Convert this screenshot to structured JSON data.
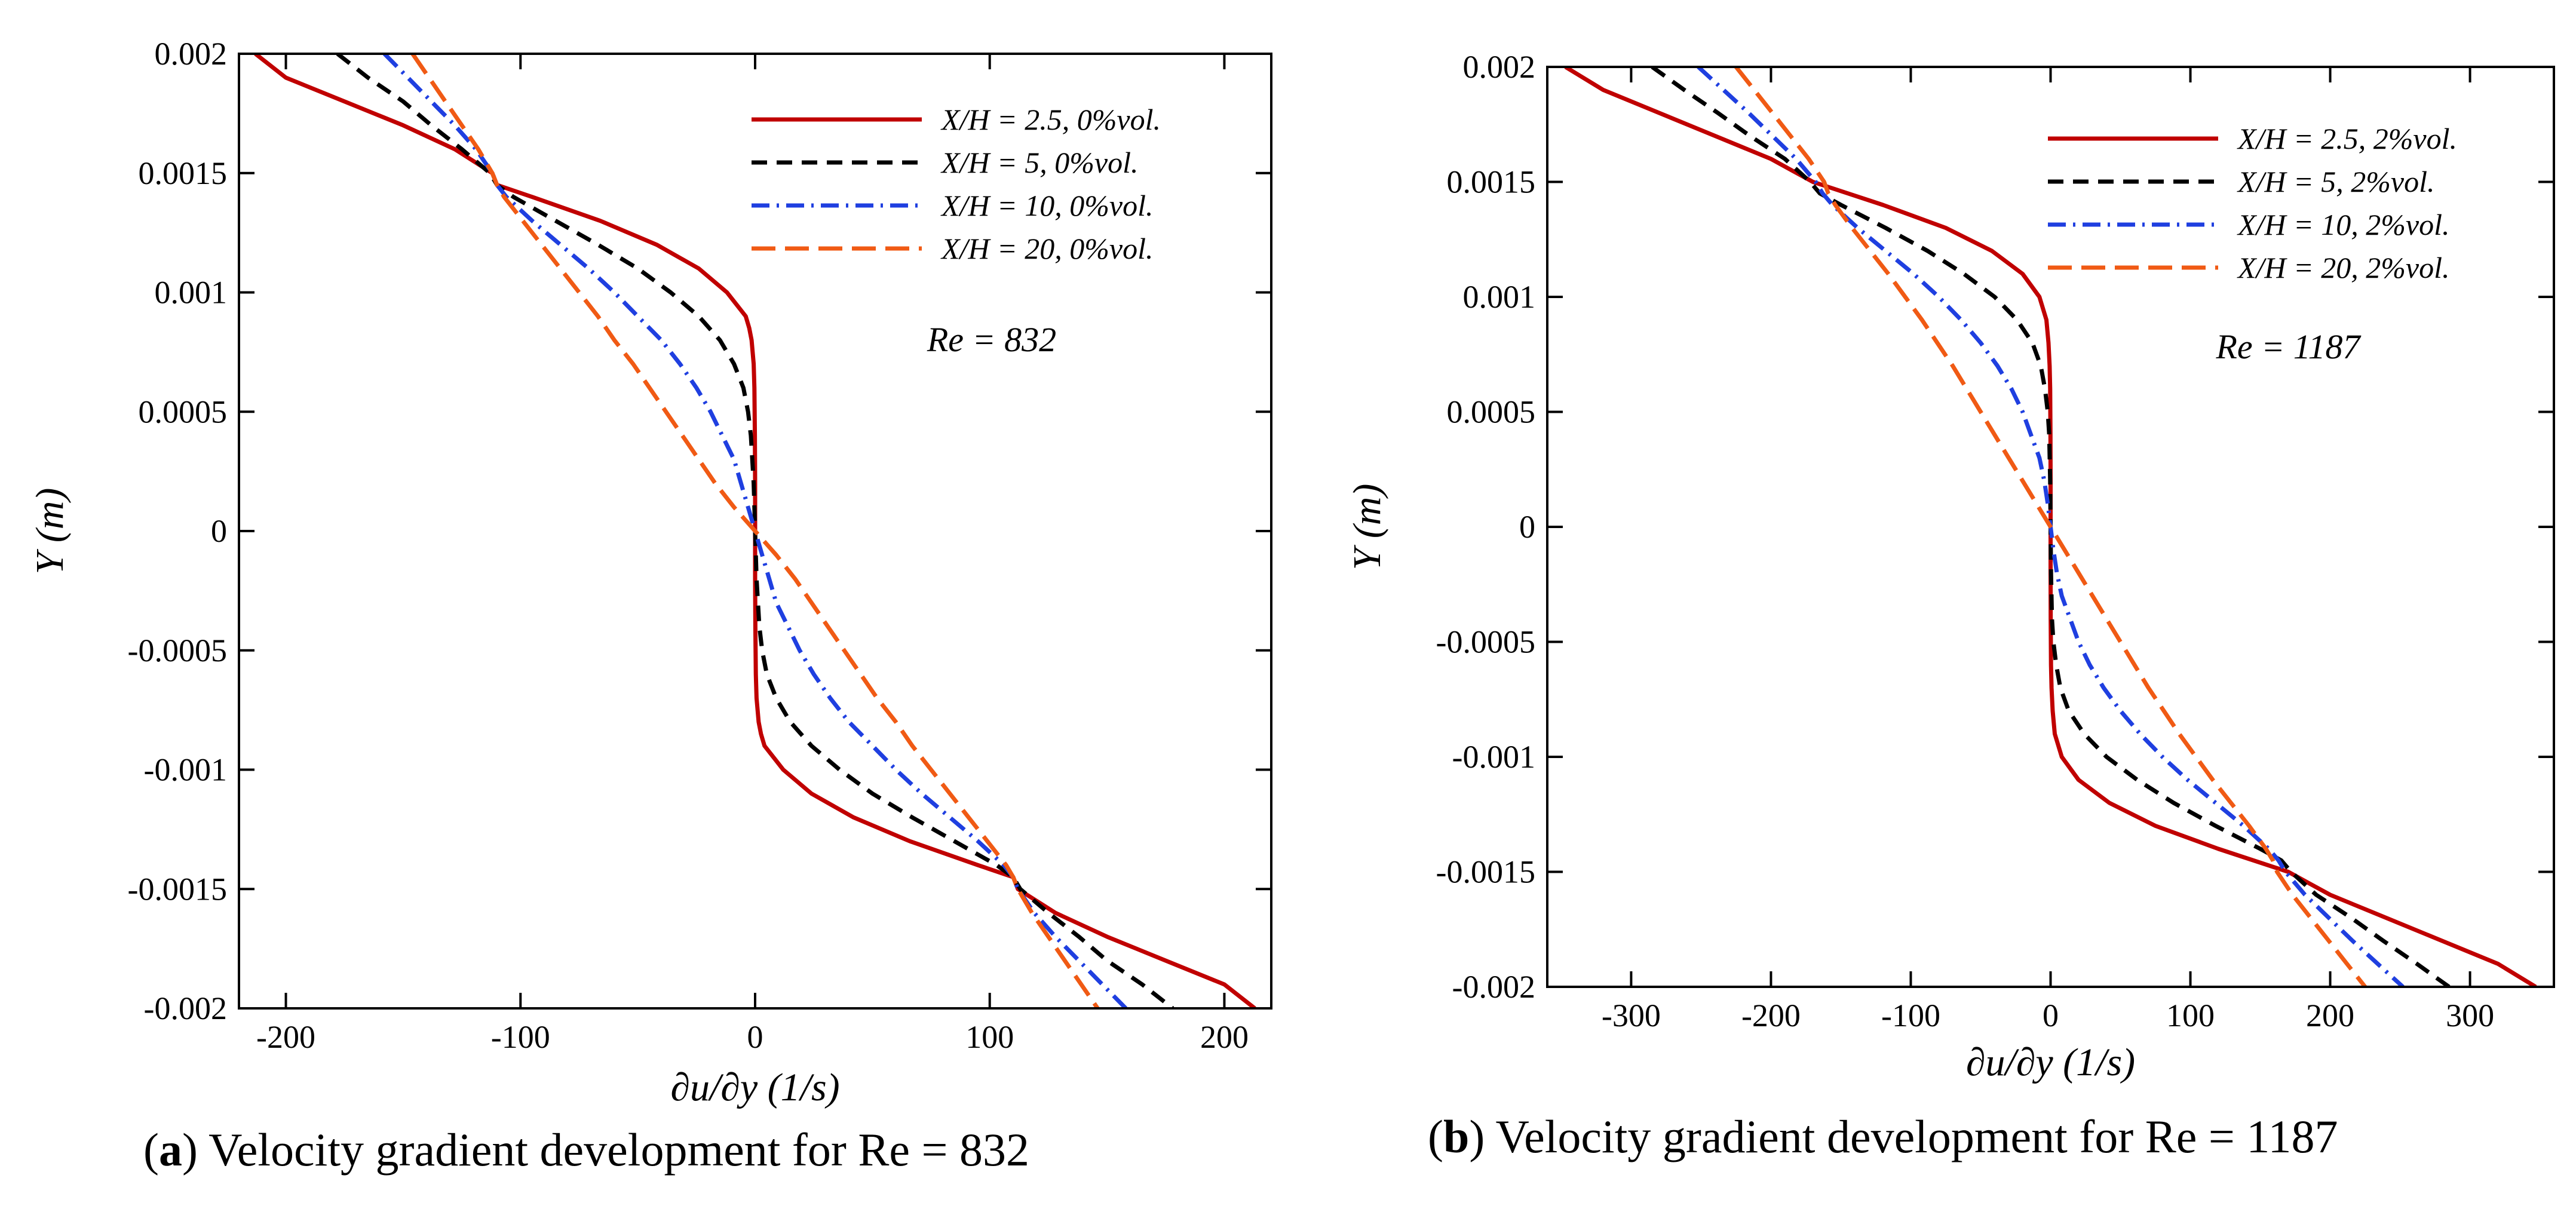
{
  "chart_data": [
    {
      "type": "line",
      "panel_label": "a",
      "caption": "Velocity gradient development for Re = 832",
      "xlabel": "∂u/∂y (1/s)",
      "ylabel": "Y (m)",
      "xlim": [
        -220,
        220
      ],
      "ylim": [
        -0.002,
        0.002
      ],
      "xticks": [
        -200,
        -100,
        0,
        100,
        200
      ],
      "xtick_labels": [
        "-200",
        "-100",
        "0",
        "100",
        "200"
      ],
      "yticks": [
        -0.002,
        -0.0015,
        -0.001,
        -0.0005,
        0,
        0.0005,
        0.001,
        0.0015,
        0.002
      ],
      "ytick_labels": [
        "-0.002",
        "-0.0015",
        "-0.001",
        "-0.0005",
        "0",
        "0.0005",
        "0.001",
        "0.0015",
        "0.002"
      ],
      "annotation": "Re = 832",
      "series": [
        {
          "name": "X/H = 2.5, 0%vol.",
          "color": "#c00000",
          "style": "solid",
          "y": [
            0.002,
            0.0019,
            0.0018,
            0.0017,
            0.0016,
            0.0015,
            0.00145,
            0.0014,
            0.0013,
            0.0012,
            0.0011,
            0.001,
            0.0009,
            0.00085,
            0.0008,
            0.0007,
            0.0006,
            0.0004,
            0.0002,
            0,
            -0.0002,
            -0.0004,
            -0.0006,
            -0.0007,
            -0.0008,
            -0.00085,
            -0.0009,
            -0.001,
            -0.0011,
            -0.0012,
            -0.0013,
            -0.0014,
            -0.00145,
            -0.0015,
            -0.0016,
            -0.0017,
            -0.0018,
            -0.0019,
            -0.002
          ],
          "x": [
            -213,
            -200,
            -175,
            -150,
            -128,
            -112,
            -110,
            -95,
            -66,
            -42,
            -24,
            -12,
            -4,
            -2.5,
            -1.5,
            -0.6,
            -0.3,
            -0.1,
            0,
            0,
            0,
            0.1,
            0.3,
            0.6,
            1.5,
            2.5,
            4,
            12,
            24,
            42,
            66,
            95,
            110,
            112,
            128,
            150,
            175,
            200,
            213
          ]
        },
        {
          "name": "X/H = 5, 0%vol.",
          "color": "#000000",
          "style": "dash",
          "y": [
            0.002,
            0.0019,
            0.0018,
            0.0017,
            0.0016,
            0.0015,
            0.00145,
            0.0014,
            0.0013,
            0.0012,
            0.0011,
            0.001,
            0.0009,
            0.0008,
            0.0007,
            0.0006,
            0.0005,
            0.0004,
            0.0002,
            0,
            -0.0002,
            -0.0004,
            -0.0005,
            -0.0006,
            -0.0007,
            -0.0008,
            -0.0009,
            -0.001,
            -0.0011,
            -0.0012,
            -0.0013,
            -0.0014,
            -0.00145,
            -0.0015,
            -0.0016,
            -0.0017,
            -0.0018,
            -0.0019,
            -0.002
          ],
          "x": [
            -178,
            -165,
            -150,
            -138,
            -125,
            -113,
            -110,
            -103,
            -85,
            -67,
            -50,
            -36,
            -24,
            -15,
            -9,
            -5,
            -3,
            -1.8,
            -0.6,
            0,
            0.6,
            1.8,
            3,
            5,
            9,
            15,
            24,
            36,
            50,
            67,
            85,
            103,
            110,
            113,
            125,
            138,
            150,
            165,
            178
          ]
        },
        {
          "name": "X/H = 10, 0%vol.",
          "color": "#1f3fe0",
          "style": "dashdot",
          "y": [
            0.002,
            0.0019,
            0.0018,
            0.0017,
            0.0016,
            0.0015,
            0.00145,
            0.0014,
            0.0013,
            0.0012,
            0.0011,
            0.001,
            0.0009,
            0.0008,
            0.0007,
            0.0006,
            0.0005,
            0.0004,
            0.0003,
            0.0002,
            0.0001,
            0,
            -0.0001,
            -0.0002,
            -0.0003,
            -0.0004,
            -0.0005,
            -0.0006,
            -0.0007,
            -0.0008,
            -0.0009,
            -0.001,
            -0.0011,
            -0.0012,
            -0.0013,
            -0.0014,
            -0.00145,
            -0.0015,
            -0.0016,
            -0.0017,
            -0.0018,
            -0.0019,
            -0.002
          ],
          "x": [
            -158,
            -148,
            -138,
            -128,
            -119,
            -112,
            -110,
            -106,
            -95,
            -83,
            -71,
            -60,
            -50,
            -40,
            -32,
            -25,
            -19,
            -14,
            -9,
            -6,
            -3,
            0,
            3,
            6,
            9,
            14,
            19,
            25,
            32,
            40,
            50,
            60,
            71,
            83,
            95,
            106,
            110,
            112,
            119,
            128,
            138,
            148,
            158
          ]
        },
        {
          "name": "X/H = 20, 0%vol.",
          "color": "#f05a14",
          "style": "longdash",
          "y": [
            0.002,
            0.0019,
            0.0018,
            0.0017,
            0.0016,
            0.0015,
            0.00145,
            0.0014,
            0.0013,
            0.0012,
            0.0011,
            0.001,
            0.0009,
            0.0008,
            0.0007,
            0.0006,
            0.0005,
            0.0004,
            0.0003,
            0.0002,
            0.0001,
            0,
            -0.0001,
            -0.0002,
            -0.0003,
            -0.0004,
            -0.0005,
            -0.0006,
            -0.0007,
            -0.0008,
            -0.0009,
            -0.001,
            -0.0011,
            -0.0012,
            -0.0013,
            -0.0014,
            -0.00145,
            -0.0015,
            -0.0016,
            -0.0017,
            -0.0018,
            -0.0019,
            -0.002
          ],
          "x": [
            -146,
            -139,
            -132,
            -125,
            -118,
            -112,
            -110,
            -107,
            -99,
            -91,
            -83,
            -75,
            -67,
            -60,
            -52,
            -45,
            -38,
            -31,
            -24,
            -17,
            -9,
            0,
            9,
            17,
            24,
            31,
            38,
            45,
            52,
            60,
            67,
            75,
            83,
            91,
            99,
            107,
            110,
            112,
            118,
            125,
            132,
            139,
            146
          ]
        }
      ]
    },
    {
      "type": "line",
      "panel_label": "b",
      "caption": "Velocity gradient development for Re = 1187",
      "xlabel": "∂u/∂y (1/s)",
      "ylabel": "Y (m)",
      "xlim": [
        -360,
        360
      ],
      "ylim": [
        -0.002,
        0.002
      ],
      "xticks": [
        -300,
        -200,
        -100,
        0,
        100,
        200,
        300
      ],
      "xtick_labels": [
        "-300",
        "-200",
        "-100",
        "0",
        "100",
        "200",
        "300"
      ],
      "yticks": [
        -0.002,
        -0.0015,
        -0.001,
        -0.0005,
        0,
        0.0005,
        0.001,
        0.0015,
        0.002
      ],
      "ytick_labels": [
        "-0.002",
        "-0.0015",
        "-0.001",
        "-0.0005",
        "0",
        "0.0005",
        "0.001",
        "0.0015",
        "0.002"
      ],
      "annotation": "Re = 1187",
      "series": [
        {
          "name": "X/H = 2.5, 2%vol.",
          "color": "#c00000",
          "style": "solid",
          "y": [
            0.002,
            0.0019,
            0.0018,
            0.0017,
            0.0016,
            0.00155,
            0.0015,
            0.0014,
            0.0013,
            0.0012,
            0.0011,
            0.001,
            0.0009,
            0.0008,
            0.0007,
            0.0006,
            0.0004,
            0.0002,
            0,
            -0.0002,
            -0.0004,
            -0.0006,
            -0.0007,
            -0.0008,
            -0.0009,
            -0.001,
            -0.0011,
            -0.0012,
            -0.0013,
            -0.0014,
            -0.0015,
            -0.00155,
            -0.0016,
            -0.0017,
            -0.0018,
            -0.0019,
            -0.002
          ],
          "x": [
            -347,
            -320,
            -280,
            -240,
            -200,
            -185,
            -170,
            -120,
            -75,
            -42,
            -20,
            -8,
            -3,
            -1.5,
            -0.7,
            -0.3,
            -0.1,
            0,
            0,
            0,
            0.1,
            0.3,
            0.7,
            1.5,
            3,
            8,
            20,
            42,
            75,
            120,
            170,
            185,
            200,
            240,
            280,
            320,
            347
          ]
        },
        {
          "name": "X/H = 5, 2%vol.",
          "color": "#000000",
          "style": "dash",
          "y": [
            0.002,
            0.0019,
            0.0018,
            0.0017,
            0.0016,
            0.0015,
            0.00145,
            0.0014,
            0.0013,
            0.0012,
            0.0011,
            0.001,
            0.0009,
            0.0008,
            0.0007,
            0.0006,
            0.0005,
            0.0004,
            0.0002,
            0,
            -0.0002,
            -0.0004,
            -0.0005,
            -0.0006,
            -0.0007,
            -0.0008,
            -0.0009,
            -0.001,
            -0.0011,
            -0.0012,
            -0.0013,
            -0.0014,
            -0.00145,
            -0.0015,
            -0.0016,
            -0.0017,
            -0.0018,
            -0.0019,
            -0.002
          ],
          "x": [
            -285,
            -262,
            -238,
            -215,
            -190,
            -172,
            -165,
            -150,
            -118,
            -88,
            -62,
            -40,
            -24,
            -13,
            -7,
            -4,
            -2,
            -1,
            -0.3,
            0,
            0.3,
            1,
            2,
            4,
            7,
            13,
            24,
            40,
            62,
            88,
            118,
            150,
            165,
            172,
            190,
            215,
            238,
            262,
            285
          ]
        },
        {
          "name": "X/H = 10, 2%vol.",
          "color": "#1f3fe0",
          "style": "dashdot",
          "y": [
            0.002,
            0.0019,
            0.0018,
            0.0017,
            0.0016,
            0.0015,
            0.00145,
            0.0014,
            0.0013,
            0.0012,
            0.0011,
            0.001,
            0.0009,
            0.0008,
            0.0007,
            0.0006,
            0.0005,
            0.0004,
            0.0003,
            0.0002,
            0.0001,
            0,
            -0.0001,
            -0.0002,
            -0.0003,
            -0.0004,
            -0.0005,
            -0.0006,
            -0.0007,
            -0.0008,
            -0.0009,
            -0.001,
            -0.0011,
            -0.0012,
            -0.0013,
            -0.0014,
            -0.00145,
            -0.0015,
            -0.0016,
            -0.0017,
            -0.0018,
            -0.0019,
            -0.002
          ],
          "x": [
            -252,
            -234,
            -216,
            -199,
            -182,
            -168,
            -163,
            -156,
            -138,
            -118,
            -98,
            -80,
            -64,
            -50,
            -38,
            -28,
            -20,
            -14,
            -8,
            -4.5,
            -2,
            0,
            2,
            4.5,
            8,
            14,
            20,
            28,
            38,
            50,
            64,
            80,
            98,
            118,
            138,
            156,
            163,
            168,
            182,
            199,
            216,
            234,
            252
          ]
        },
        {
          "name": "X/H = 20, 2%vol.",
          "color": "#f05a14",
          "style": "longdash",
          "y": [
            0.002,
            0.0019,
            0.0018,
            0.0017,
            0.0016,
            0.0015,
            0.00145,
            0.0014,
            0.0013,
            0.0012,
            0.0011,
            0.001,
            0.0009,
            0.0008,
            0.0007,
            0.0006,
            0.0005,
            0.0004,
            0.0003,
            0.0002,
            0.0001,
            0,
            -0.0001,
            -0.0002,
            -0.0003,
            -0.0004,
            -0.0005,
            -0.0006,
            -0.0007,
            -0.0008,
            -0.0009,
            -0.001,
            -0.0011,
            -0.0012,
            -0.0013,
            -0.0014,
            -0.00145,
            -0.0015,
            -0.0016,
            -0.0017,
            -0.0018,
            -0.0019,
            -0.002
          ],
          "x": [
            -225,
            -212,
            -199,
            -186,
            -173,
            -162,
            -159,
            -154,
            -142,
            -129,
            -116,
            -104,
            -92,
            -81,
            -70,
            -60,
            -50,
            -40,
            -30,
            -20,
            -10,
            0,
            10,
            20,
            30,
            40,
            50,
            60,
            70,
            81,
            92,
            104,
            116,
            129,
            142,
            154,
            159,
            162,
            173,
            186,
            199,
            212,
            225
          ]
        }
      ]
    }
  ]
}
